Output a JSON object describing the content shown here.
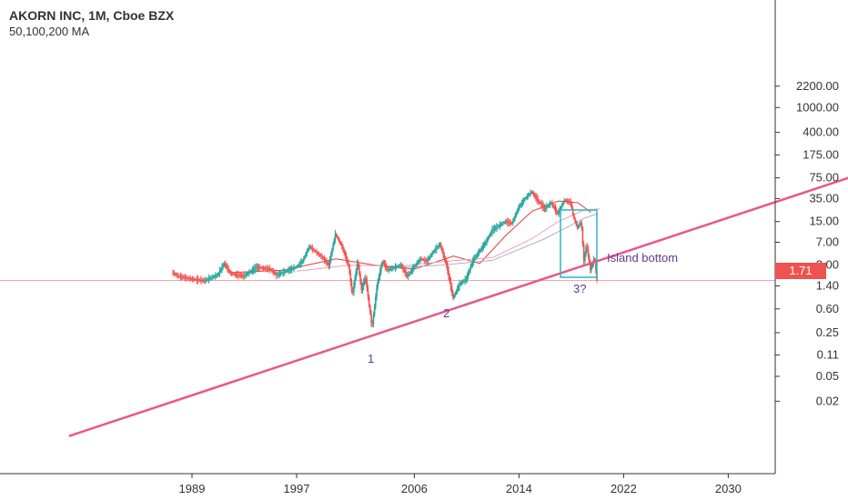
{
  "header": {
    "title": "AKORN INC, 1M, Cboe BZX",
    "subtitle": "50,100,200 MA"
  },
  "price_tag": "1.71",
  "annotations": {
    "island": "Island bottom",
    "p1": "1",
    "p2": "2",
    "p3": "3?"
  },
  "colors": {
    "up": "#26a69a",
    "down": "#ef5350",
    "trendline": "#e8588a",
    "box": "#29b6c8",
    "ma_red": "#e53935",
    "ma_pink": "#f2a0b4",
    "ma_grey": "#b0b0c0",
    "price_line": "#f4a6a6",
    "axis_text": "#333333",
    "annotation": "#5c3b8a"
  },
  "chart_data": {
    "type": "candlestick",
    "title": "AKORN INC, 1M, Cboe BZX",
    "y_scale": "log",
    "y_ticks": [
      "2200.00",
      "1000.00",
      "400.00",
      "175.00",
      "75.00",
      "35.00",
      "15.00",
      "7.00",
      "3.00",
      "1.40",
      "0.60",
      "0.25",
      "0.11",
      "0.05",
      "0.02"
    ],
    "x_ticks": [
      "1989",
      "1997",
      "2006",
      "2014",
      "2022",
      "2030"
    ],
    "last_price": 1.71,
    "price_series": [
      [
        1987.5,
        2.3
      ],
      [
        1988.0,
        2.0
      ],
      [
        1989.0,
        1.8
      ],
      [
        1990.0,
        1.7
      ],
      [
        1991.0,
        2.1
      ],
      [
        1991.5,
        3.2
      ],
      [
        1992.0,
        2.2
      ],
      [
        1993.0,
        2.0
      ],
      [
        1994.0,
        2.8
      ],
      [
        1995.0,
        2.6
      ],
      [
        1995.5,
        2.1
      ],
      [
        1996.0,
        2.3
      ],
      [
        1997.0,
        2.8
      ],
      [
        1997.5,
        3.5
      ],
      [
        1998.0,
        6.0
      ],
      [
        1999.0,
        4.0
      ],
      [
        1999.5,
        3.0
      ],
      [
        2000.0,
        9.5
      ],
      [
        2000.5,
        6.0
      ],
      [
        2001.0,
        3.0
      ],
      [
        2001.3,
        1.0
      ],
      [
        2001.7,
        3.5
      ],
      [
        2002.0,
        1.2
      ],
      [
        2002.3,
        2.0
      ],
      [
        2002.8,
        0.3
      ],
      [
        2003.2,
        1.5
      ],
      [
        2003.6,
        3.5
      ],
      [
        2004.0,
        2.5
      ],
      [
        2005.0,
        3.0
      ],
      [
        2005.5,
        2.0
      ],
      [
        2006.0,
        2.8
      ],
      [
        2006.5,
        3.8
      ],
      [
        2007.0,
        3.5
      ],
      [
        2007.5,
        5.0
      ],
      [
        2008.0,
        6.5
      ],
      [
        2008.5,
        3.0
      ],
      [
        2009.0,
        0.9
      ],
      [
        2009.5,
        1.5
      ],
      [
        2010.0,
        1.8
      ],
      [
        2010.5,
        3.5
      ],
      [
        2011.0,
        5.0
      ],
      [
        2011.5,
        7.0
      ],
      [
        2012.0,
        11.0
      ],
      [
        2013.0,
        15.0
      ],
      [
        2013.5,
        14.0
      ],
      [
        2014.0,
        25.0
      ],
      [
        2014.5,
        35.0
      ],
      [
        2015.0,
        45.0
      ],
      [
        2015.5,
        32.0
      ],
      [
        2016.0,
        24.0
      ],
      [
        2016.5,
        30.0
      ],
      [
        2017.0,
        20.0
      ],
      [
        2017.5,
        33.0
      ],
      [
        2018.0,
        30.0
      ],
      [
        2018.2,
        18.0
      ],
      [
        2018.5,
        12.0
      ],
      [
        2018.8,
        15.0
      ],
      [
        2019.0,
        3.5
      ],
      [
        2019.2,
        6.5
      ],
      [
        2019.5,
        2.5
      ],
      [
        2019.8,
        4.0
      ],
      [
        2020.0,
        1.71
      ]
    ],
    "moving_averages": [
      {
        "name": "50",
        "points": [
          [
            1992,
            2.3
          ],
          [
            1996,
            2.5
          ],
          [
            2000,
            3.8
          ],
          [
            2003,
            3.0
          ],
          [
            2006,
            2.6
          ],
          [
            2009,
            4.2
          ],
          [
            2011,
            3.2
          ],
          [
            2013,
            9.0
          ],
          [
            2015,
            22.0
          ],
          [
            2017,
            32.0
          ],
          [
            2018.5,
            30.0
          ],
          [
            2019.5,
            21.0
          ]
        ]
      },
      {
        "name": "100",
        "points": [
          [
            1997,
            2.4
          ],
          [
            2001,
            3.0
          ],
          [
            2005,
            2.9
          ],
          [
            2008,
            3.4
          ],
          [
            2012,
            4.0
          ],
          [
            2015,
            8.0
          ],
          [
            2017,
            15.0
          ],
          [
            2019,
            23.0
          ],
          [
            2020.2,
            24.0
          ]
        ]
      },
      {
        "name": "200",
        "points": [
          [
            2004,
            2.7
          ],
          [
            2008,
            3.0
          ],
          [
            2012,
            3.6
          ],
          [
            2016,
            8.0
          ],
          [
            2019,
            17.0
          ],
          [
            2020,
            20.0
          ]
        ]
      }
    ],
    "trendline": [
      [
        1979.6,
        0.00555
      ],
      [
        2039.6,
        80.0
      ]
    ],
    "grid": false,
    "legend": "top-left"
  }
}
